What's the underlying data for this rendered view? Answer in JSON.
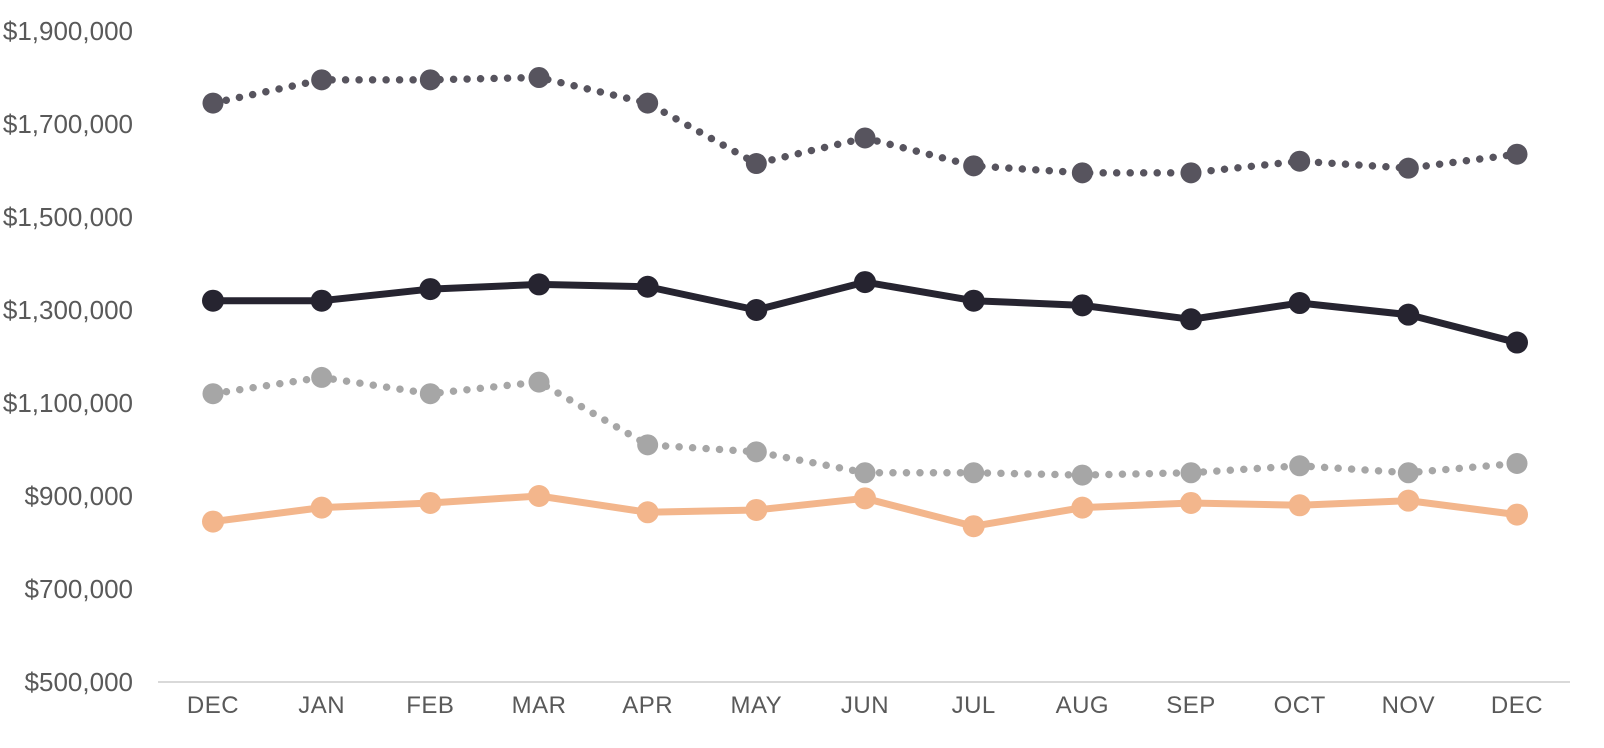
{
  "chart_data": {
    "type": "line",
    "title": "",
    "xlabel": "",
    "ylabel": "",
    "categories": [
      "DEC",
      "JAN",
      "FEB",
      "MAR",
      "APR",
      "MAY",
      "JUN",
      "JUL",
      "AUG",
      "SEP",
      "OCT",
      "NOV",
      "DEC"
    ],
    "y_axis": {
      "min": 500000,
      "max": 1900000,
      "step": 200000,
      "tick_labels": [
        "$500,000",
        "$700,000",
        "$900,000",
        "$1,100,000",
        "$1,300,000",
        "$1,500,000",
        "$1,700,000",
        "$1,900,000"
      ]
    },
    "ylim": [
      500000,
      1900000
    ],
    "grid": false,
    "legend_position": "none",
    "series": [
      {
        "name": "dark-gray-dotted",
        "color": "#57545e",
        "line_style": "dotted",
        "marker": "circle",
        "values": [
          1745000,
          1795000,
          1795000,
          1800000,
          1745000,
          1615000,
          1670000,
          1610000,
          1595000,
          1595000,
          1620000,
          1605000,
          1635000
        ]
      },
      {
        "name": "black-solid",
        "color": "#262430",
        "line_style": "solid",
        "marker": "circle",
        "values": [
          1320000,
          1320000,
          1345000,
          1355000,
          1350000,
          1300000,
          1360000,
          1320000,
          1310000,
          1280000,
          1315000,
          1290000,
          1230000
        ]
      },
      {
        "name": "light-gray-dotted",
        "color": "#a6a6a6",
        "line_style": "dotted",
        "marker": "circle",
        "values": [
          1120000,
          1155000,
          1120000,
          1145000,
          1010000,
          995000,
          950000,
          950000,
          945000,
          950000,
          965000,
          950000,
          970000
        ]
      },
      {
        "name": "orange-solid",
        "color": "#f3b68c",
        "line_style": "solid",
        "marker": "circle",
        "values": [
          845000,
          875000,
          885000,
          900000,
          865000,
          870000,
          895000,
          835000,
          875000,
          885000,
          880000,
          890000,
          860000
        ]
      }
    ],
    "axis_line_color": "#d9d9d9",
    "label_color": "#595959"
  }
}
